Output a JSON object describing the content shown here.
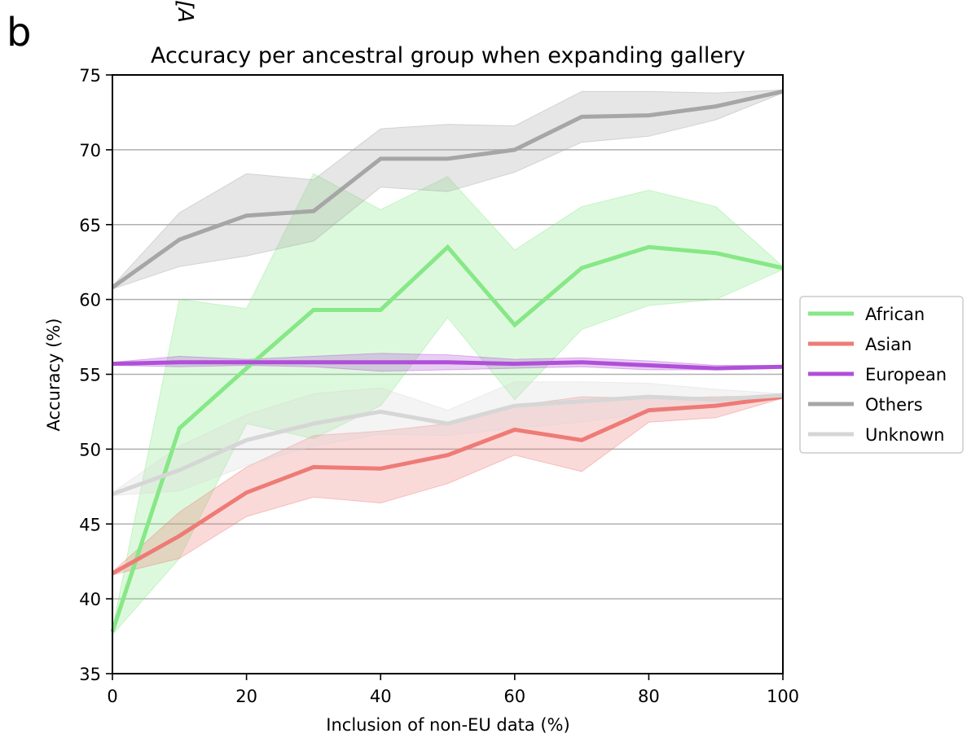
{
  "panel_letter": "b",
  "clipped_text": "[A",
  "chart_data": {
    "type": "line",
    "title": "Accuracy per ancestral group when expanding gallery",
    "xlabel": "Inclusion of non-EU data (%)",
    "ylabel": "Accuracy (%)",
    "xlim": [
      0,
      100
    ],
    "ylim": [
      35,
      75
    ],
    "xticks": [
      0,
      20,
      40,
      60,
      80,
      100
    ],
    "yticks": [
      35,
      40,
      45,
      50,
      55,
      60,
      65,
      70,
      75
    ],
    "xtick_labels": [
      "0",
      "20",
      "40",
      "60",
      "80",
      "100"
    ],
    "ytick_labels": [
      "35",
      "40",
      "45",
      "50",
      "55",
      "60",
      "65",
      "70",
      "75"
    ],
    "grid": "horizontal",
    "legend_position": "right-outside",
    "x": [
      0,
      10,
      20,
      30,
      40,
      50,
      60,
      70,
      80,
      90,
      100
    ],
    "series": [
      {
        "name": "African",
        "color": "#86e886",
        "values": [
          37.8,
          51.4,
          55.4,
          59.3,
          59.3,
          63.5,
          58.3,
          62.1,
          63.5,
          63.1,
          62.1
        ],
        "lower": [
          37.6,
          42.7,
          51.7,
          50.7,
          52.9,
          58.8,
          53.3,
          58.0,
          59.6,
          60.0,
          62.0
        ],
        "upper": [
          38.0,
          60.0,
          59.4,
          68.4,
          66.0,
          68.2,
          63.3,
          66.2,
          67.3,
          66.2,
          62.2
        ]
      },
      {
        "name": "Asian",
        "color": "#ee7b76",
        "values": [
          41.7,
          44.2,
          47.1,
          48.8,
          48.7,
          49.6,
          51.3,
          50.6,
          52.6,
          52.9,
          53.5
        ],
        "lower": [
          41.6,
          42.7,
          45.5,
          46.8,
          46.4,
          47.7,
          49.6,
          48.5,
          51.8,
          52.1,
          53.4
        ],
        "upper": [
          41.8,
          45.8,
          48.8,
          50.9,
          51.2,
          51.7,
          52.9,
          53.5,
          53.4,
          53.5,
          53.6
        ]
      },
      {
        "name": "European",
        "color": "#b04fd8",
        "values": [
          55.7,
          55.8,
          55.8,
          55.8,
          55.8,
          55.8,
          55.7,
          55.8,
          55.6,
          55.4,
          55.5
        ],
        "lower": [
          55.6,
          55.5,
          55.6,
          55.5,
          55.2,
          55.3,
          55.4,
          55.5,
          55.3,
          55.3,
          55.4
        ],
        "upper": [
          55.8,
          56.2,
          56.0,
          56.2,
          56.4,
          56.3,
          56.0,
          56.1,
          55.9,
          55.6,
          55.6
        ]
      },
      {
        "name": "Others",
        "color": "#a6a6a6",
        "values": [
          60.8,
          64.0,
          65.6,
          65.9,
          69.4,
          69.4,
          70.0,
          72.2,
          72.3,
          72.9,
          73.9
        ],
        "lower": [
          60.7,
          62.2,
          62.9,
          63.9,
          67.5,
          67.2,
          68.5,
          70.5,
          70.9,
          72.0,
          73.8
        ],
        "upper": [
          60.9,
          65.8,
          68.4,
          68.0,
          71.4,
          71.7,
          71.6,
          73.9,
          73.9,
          73.8,
          74.0
        ]
      },
      {
        "name": "Unknown",
        "color": "#d6d6d6",
        "values": [
          47.0,
          48.6,
          50.6,
          51.7,
          52.5,
          51.7,
          52.9,
          53.2,
          53.5,
          53.3,
          53.6
        ],
        "lower": [
          46.9,
          47.2,
          48.9,
          50.2,
          51.0,
          50.9,
          51.4,
          51.8,
          52.4,
          52.8,
          53.5
        ],
        "upper": [
          47.1,
          50.2,
          52.3,
          53.7,
          54.1,
          52.6,
          54.5,
          54.5,
          54.4,
          54.0,
          53.7
        ]
      }
    ]
  }
}
